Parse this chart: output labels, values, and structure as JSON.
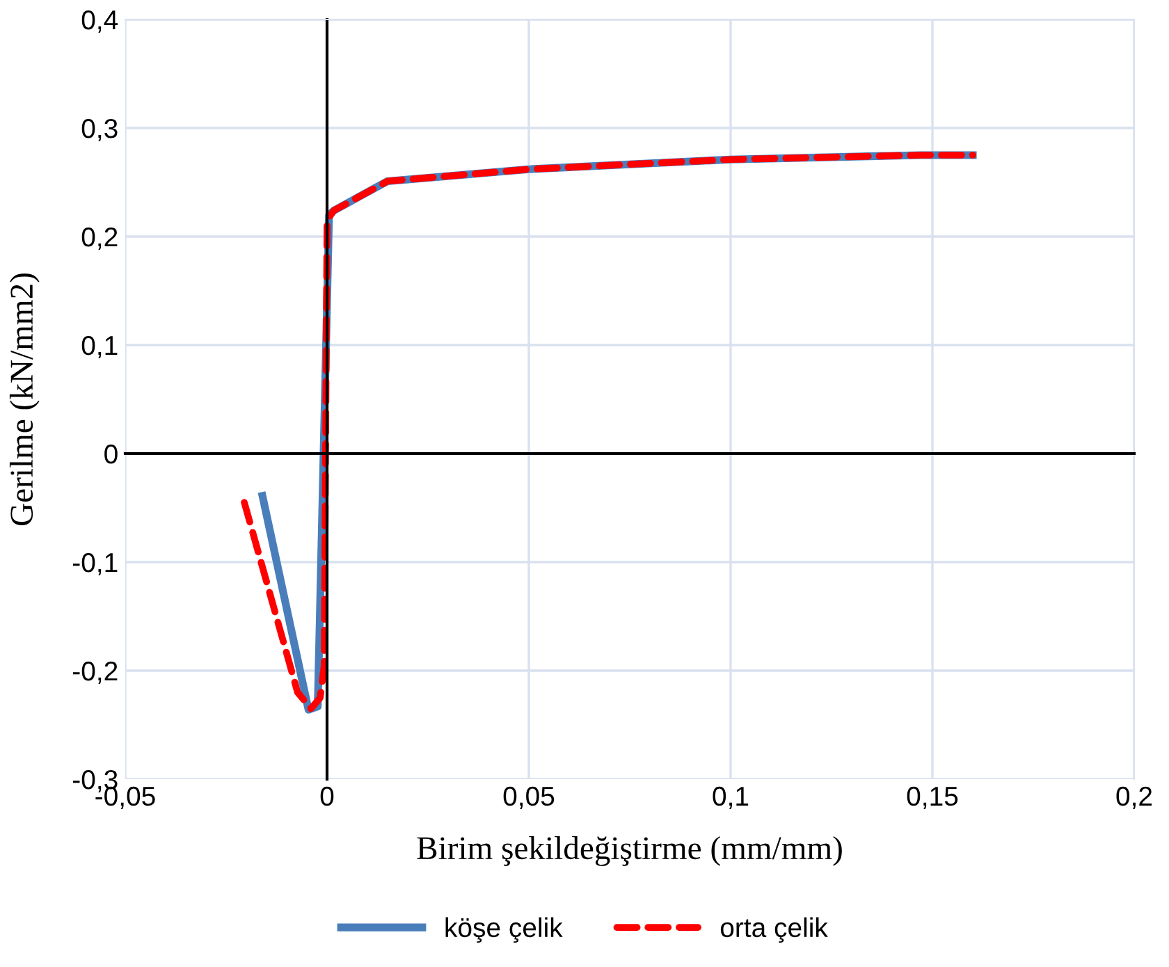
{
  "chart_data": {
    "type": "line",
    "xlabel": "Birim şekildeğiştirme (mm/mm)",
    "ylabel": "Gerilme (kN/mm2)",
    "xlim": [
      -0.05,
      0.2
    ],
    "ylim": [
      -0.3,
      0.4
    ],
    "xticks": [
      {
        "value": -0.05,
        "label": "-0,05"
      },
      {
        "value": 0,
        "label": "0"
      },
      {
        "value": 0.05,
        "label": "0,05"
      },
      {
        "value": 0.1,
        "label": "0,1"
      },
      {
        "value": 0.15,
        "label": "0,15"
      },
      {
        "value": 0.2,
        "label": "0,2"
      }
    ],
    "yticks": [
      {
        "value": -0.3,
        "label": "-0,3"
      },
      {
        "value": -0.2,
        "label": "-0,2"
      },
      {
        "value": -0.1,
        "label": "-0,1"
      },
      {
        "value": 0,
        "label": "0"
      },
      {
        "value": 0.1,
        "label": "0,1"
      },
      {
        "value": 0.2,
        "label": "0,2"
      },
      {
        "value": 0.3,
        "label": "0,3"
      },
      {
        "value": 0.4,
        "label": "0,4"
      }
    ],
    "grid": true,
    "legend": "bottom",
    "marker": "none",
    "series": [
      {
        "name": "köşe çelik",
        "color": "#4a7ebb",
        "line_style": "solid",
        "x": [
          -0.016,
          -0.0046,
          -0.0023,
          0.0005,
          0.0017,
          0.015,
          0.05,
          0.1,
          0.147,
          0.16
        ],
        "values": [
          -0.039,
          -0.236,
          -0.233,
          0.22,
          0.224,
          0.251,
          0.262,
          0.271,
          0.275,
          0.275
        ]
      },
      {
        "name": "orta çelik",
        "color": "#ff0000",
        "line_style": "dashed",
        "x": [
          -0.0205,
          -0.0073,
          -0.004,
          -0.0017,
          -0.0007,
          0.0,
          0.0017,
          0.015,
          0.05,
          0.1,
          0.147,
          0.16
        ],
        "values": [
          -0.045,
          -0.22,
          -0.235,
          -0.225,
          -0.195,
          0.215,
          0.224,
          0.251,
          0.262,
          0.271,
          0.275,
          0.275
        ]
      }
    ]
  }
}
